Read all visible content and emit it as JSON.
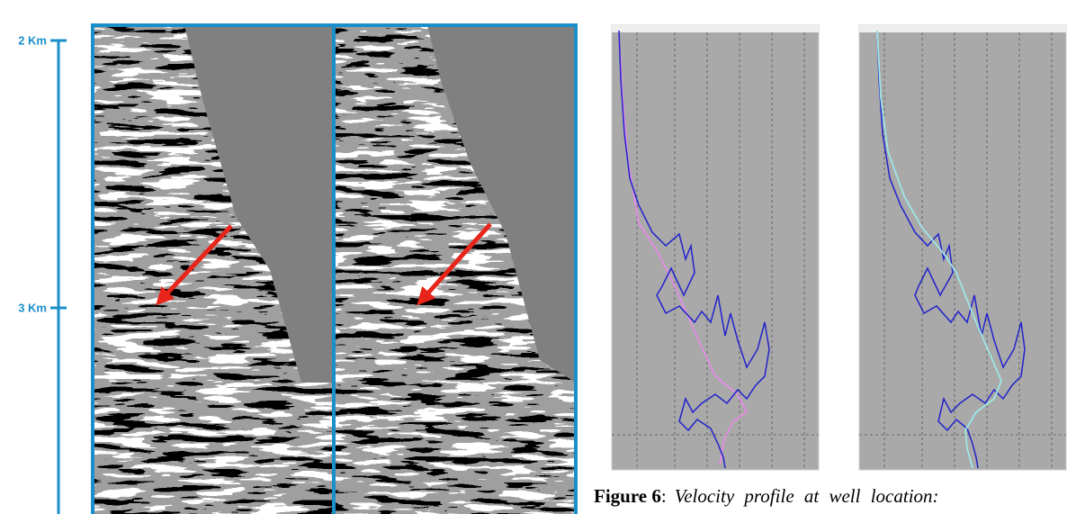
{
  "scale": {
    "ticks": [
      "2 Km",
      "3 Km"
    ]
  },
  "caption": {
    "label": "Figure 6",
    "separator": ":",
    "text": "Velocity profile at well location:"
  }
}
